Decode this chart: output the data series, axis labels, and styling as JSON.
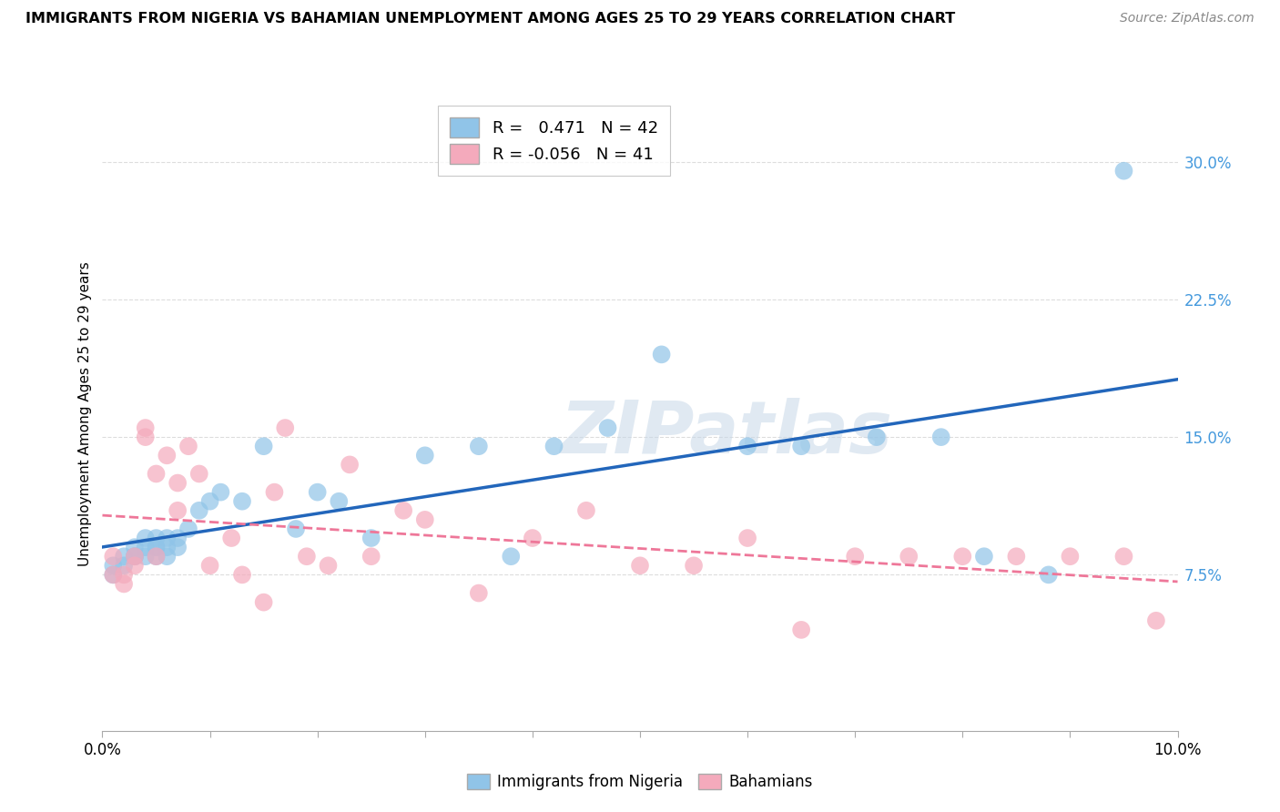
{
  "title": "IMMIGRANTS FROM NIGERIA VS BAHAMIAN UNEMPLOYMENT AMONG AGES 25 TO 29 YEARS CORRELATION CHART",
  "source": "Source: ZipAtlas.com",
  "ylabel": "Unemployment Among Ages 25 to 29 years",
  "ylabel_right_ticks": [
    "7.5%",
    "15.0%",
    "22.5%",
    "30.0%"
  ],
  "ylabel_right_vals": [
    0.075,
    0.15,
    0.225,
    0.3
  ],
  "xlim": [
    0.0,
    0.1
  ],
  "ylim": [
    -0.01,
    0.335
  ],
  "legend_label1": "Immigrants from Nigeria",
  "legend_label2": "Bahamians",
  "nigeria_color": "#90C4E8",
  "bahamian_color": "#F4AABC",
  "nigeria_line_color": "#2266BB",
  "bahamian_line_color": "#EE7799",
  "watermark": "ZIPatlas",
  "nigeria_x": [
    0.001,
    0.001,
    0.002,
    0.002,
    0.003,
    0.003,
    0.003,
    0.004,
    0.004,
    0.004,
    0.005,
    0.005,
    0.005,
    0.005,
    0.006,
    0.006,
    0.006,
    0.007,
    0.007,
    0.008,
    0.009,
    0.01,
    0.011,
    0.013,
    0.015,
    0.018,
    0.02,
    0.022,
    0.025,
    0.03,
    0.035,
    0.038,
    0.042,
    0.047,
    0.052,
    0.06,
    0.065,
    0.072,
    0.078,
    0.082,
    0.088,
    0.095
  ],
  "nigeria_y": [
    0.075,
    0.08,
    0.08,
    0.085,
    0.085,
    0.09,
    0.085,
    0.09,
    0.095,
    0.085,
    0.085,
    0.09,
    0.095,
    0.09,
    0.085,
    0.09,
    0.095,
    0.095,
    0.09,
    0.1,
    0.11,
    0.115,
    0.12,
    0.115,
    0.145,
    0.1,
    0.12,
    0.115,
    0.095,
    0.14,
    0.145,
    0.085,
    0.145,
    0.155,
    0.195,
    0.145,
    0.145,
    0.15,
    0.15,
    0.085,
    0.075,
    0.295
  ],
  "bahamian_x": [
    0.001,
    0.001,
    0.002,
    0.002,
    0.003,
    0.003,
    0.004,
    0.004,
    0.005,
    0.005,
    0.006,
    0.007,
    0.007,
    0.008,
    0.009,
    0.01,
    0.012,
    0.013,
    0.015,
    0.016,
    0.017,
    0.019,
    0.021,
    0.023,
    0.025,
    0.028,
    0.03,
    0.035,
    0.04,
    0.045,
    0.05,
    0.055,
    0.06,
    0.065,
    0.07,
    0.075,
    0.08,
    0.085,
    0.09,
    0.095,
    0.098
  ],
  "bahamian_y": [
    0.075,
    0.085,
    0.075,
    0.07,
    0.085,
    0.08,
    0.155,
    0.15,
    0.13,
    0.085,
    0.14,
    0.125,
    0.11,
    0.145,
    0.13,
    0.08,
    0.095,
    0.075,
    0.06,
    0.12,
    0.155,
    0.085,
    0.08,
    0.135,
    0.085,
    0.11,
    0.105,
    0.065,
    0.095,
    0.11,
    0.08,
    0.08,
    0.095,
    0.045,
    0.085,
    0.085,
    0.085,
    0.085,
    0.085,
    0.085,
    0.05
  ],
  "background_color": "#FFFFFF",
  "grid_color": "#DDDDDD"
}
